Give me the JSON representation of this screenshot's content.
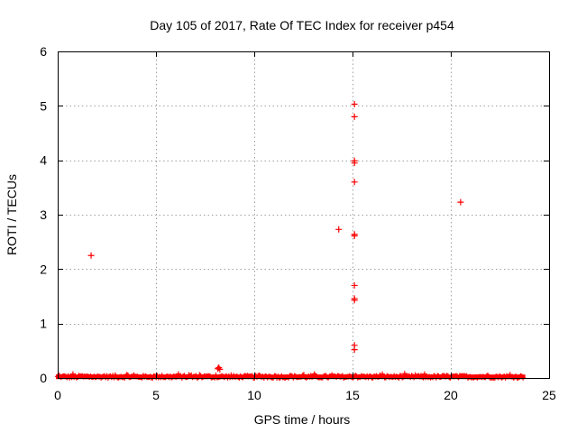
{
  "chart_data": {
    "type": "scatter",
    "title": "Day 105 of 2017, Rate Of TEC Index for receiver p454",
    "xlabel": "GPS time / hours",
    "ylabel": "ROTI / TECUs",
    "xlim": [
      0,
      25
    ],
    "ylim": [
      0,
      6
    ],
    "x_ticks": [
      0,
      5,
      10,
      15,
      20,
      25
    ],
    "y_ticks": [
      0,
      1,
      2,
      3,
      4,
      5,
      6
    ],
    "grid": true,
    "marker": "+",
    "series": [
      {
        "name": "ROTI",
        "color": "#ff0000",
        "baseline_band": {
          "x_start": 0.0,
          "x_end": 23.7,
          "y_min": 0.0,
          "y_max": 0.08,
          "note": "dense continuous band of low ROTI values"
        },
        "points": [
          {
            "x": 1.7,
            "y": 2.25
          },
          {
            "x": 8.15,
            "y": 0.17
          },
          {
            "x": 8.2,
            "y": 0.19
          },
          {
            "x": 8.25,
            "y": 0.16
          },
          {
            "x": 14.3,
            "y": 2.73
          },
          {
            "x": 15.1,
            "y": 5.03
          },
          {
            "x": 15.1,
            "y": 4.8
          },
          {
            "x": 15.1,
            "y": 3.99
          },
          {
            "x": 15.1,
            "y": 3.95
          },
          {
            "x": 15.1,
            "y": 3.6
          },
          {
            "x": 15.1,
            "y": 2.64
          },
          {
            "x": 15.1,
            "y": 2.61
          },
          {
            "x": 15.1,
            "y": 1.7
          },
          {
            "x": 15.1,
            "y": 1.46
          },
          {
            "x": 15.1,
            "y": 1.43
          },
          {
            "x": 15.1,
            "y": 0.6
          },
          {
            "x": 15.1,
            "y": 0.52
          },
          {
            "x": 20.5,
            "y": 3.23
          }
        ]
      }
    ]
  }
}
